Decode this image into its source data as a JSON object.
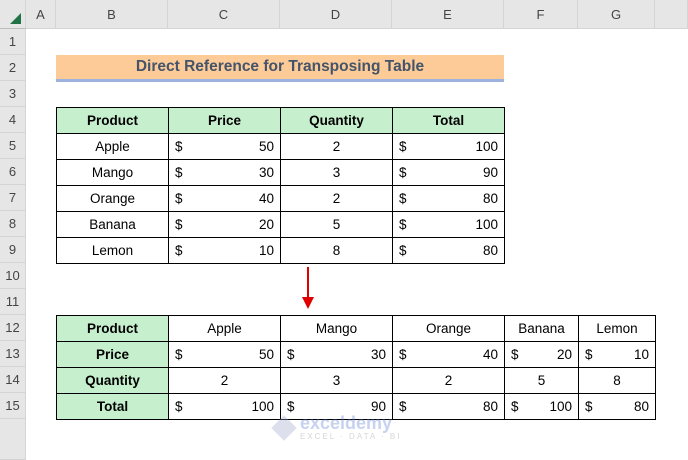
{
  "columns": [
    "A",
    "B",
    "C",
    "D",
    "E",
    "F",
    "G"
  ],
  "rows": [
    "1",
    "2",
    "3",
    "4",
    "5",
    "6",
    "7",
    "8",
    "9",
    "10",
    "11",
    "12",
    "13",
    "14",
    "15"
  ],
  "title": "Direct Reference for Transposing Table",
  "table1": {
    "headers": [
      "Product",
      "Price",
      "Quantity",
      "Total"
    ],
    "rows": [
      {
        "product": "Apple",
        "price": "50",
        "quantity": "2",
        "total": "100"
      },
      {
        "product": "Mango",
        "price": "30",
        "quantity": "3",
        "total": "90"
      },
      {
        "product": "Orange",
        "price": "40",
        "quantity": "2",
        "total": "80"
      },
      {
        "product": "Banana",
        "price": "20",
        "quantity": "5",
        "total": "100"
      },
      {
        "product": "Lemon",
        "price": "10",
        "quantity": "8",
        "total": "80"
      }
    ]
  },
  "table2": {
    "row_headers": [
      "Product",
      "Price",
      "Quantity",
      "Total"
    ],
    "products": [
      "Apple",
      "Mango",
      "Orange",
      "Banana",
      "Lemon"
    ],
    "prices": [
      "50",
      "30",
      "40",
      "20",
      "10"
    ],
    "quantities": [
      "2",
      "3",
      "2",
      "5",
      "8"
    ],
    "totals": [
      "100",
      "90",
      "80",
      "100",
      "80"
    ]
  },
  "currency_symbol": "$",
  "watermark": {
    "name": "exceldemy",
    "tagline": "EXCEL · DATA · BI"
  },
  "colors": {
    "header_fill": "#c6efce",
    "title_fill": "#fccb98",
    "title_text": "#44546a",
    "arrow": "#e00000"
  }
}
